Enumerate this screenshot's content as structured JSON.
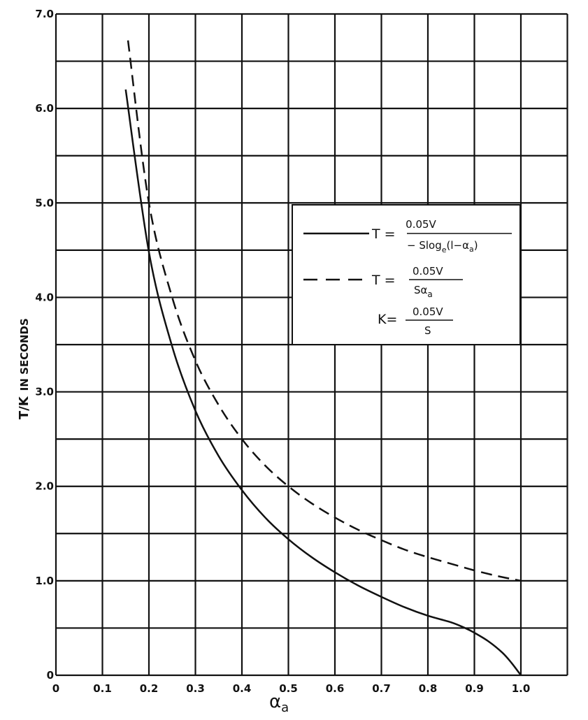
{
  "chart_data": {
    "type": "line",
    "title": "",
    "xlabel": "α",
    "xlabel_sub": "a",
    "ylabel_frac": "T/K",
    "ylabel_rest": "IN SECONDS",
    "xlim": [
      0,
      1.1
    ],
    "ylim": [
      0,
      7.0
    ],
    "grid": true,
    "x_grid_step": 0.1,
    "y_grid_step": 0.5,
    "x_ticks": [
      0,
      0.1,
      0.2,
      0.3,
      0.4,
      0.5,
      0.6,
      0.7,
      0.8,
      0.9,
      1.0
    ],
    "x_tick_labels": [
      "0",
      "0.1",
      "0.2",
      "0.3",
      "0.4",
      "0.5",
      "0.6",
      "0.7",
      "0.8",
      "0.9",
      "1.0"
    ],
    "y_ticks": [
      0,
      1,
      2,
      3,
      4,
      5,
      6,
      7
    ],
    "y_tick_labels": [
      "0",
      "1.0",
      "2.0",
      "3.0",
      "4.0",
      "5.0",
      "6.0",
      "7.0"
    ],
    "legend_position": "center-right",
    "series": [
      {
        "style": "solid",
        "x": [
          0.15,
          0.2,
          0.25,
          0.3,
          0.35,
          0.4,
          0.45,
          0.5,
          0.55,
          0.6,
          0.65,
          0.7,
          0.75,
          0.8,
          0.85,
          0.88,
          0.9,
          0.93,
          0.96,
          0.98,
          1.0
        ],
        "y": [
          6.2,
          4.48,
          3.48,
          2.8,
          2.32,
          1.96,
          1.67,
          1.44,
          1.25,
          1.09,
          0.95,
          0.83,
          0.72,
          0.63,
          0.56,
          0.5,
          0.45,
          0.36,
          0.24,
          0.13,
          0.0
        ]
      },
      {
        "style": "dashed",
        "x": [
          0.155,
          0.2,
          0.25,
          0.3,
          0.35,
          0.4,
          0.45,
          0.5,
          0.55,
          0.6,
          0.65,
          0.7,
          0.75,
          0.8,
          0.85,
          0.9,
          0.95,
          1.0
        ],
        "y": [
          6.72,
          5.0,
          4.0,
          3.33,
          2.86,
          2.5,
          2.22,
          2.0,
          1.82,
          1.67,
          1.54,
          1.43,
          1.33,
          1.25,
          1.18,
          1.11,
          1.05,
          1.0
        ]
      }
    ],
    "legend": {
      "solid": {
        "lhs": "T =",
        "num": "0.05V",
        "den": "− Slog",
        "den_sub": "e",
        "den_tail": "(l−α",
        "den_tail_sub": "a",
        "den_close": ")"
      },
      "dashed": {
        "lhs": "T =",
        "num": "0.05V",
        "den": "Sα",
        "den_sub": "a"
      },
      "k_def": {
        "lhs": "K=",
        "num": "0.05V",
        "den": "S"
      }
    },
    "colors": {
      "line": "#111111",
      "grid": "#111111",
      "background": "#ffffff"
    }
  }
}
